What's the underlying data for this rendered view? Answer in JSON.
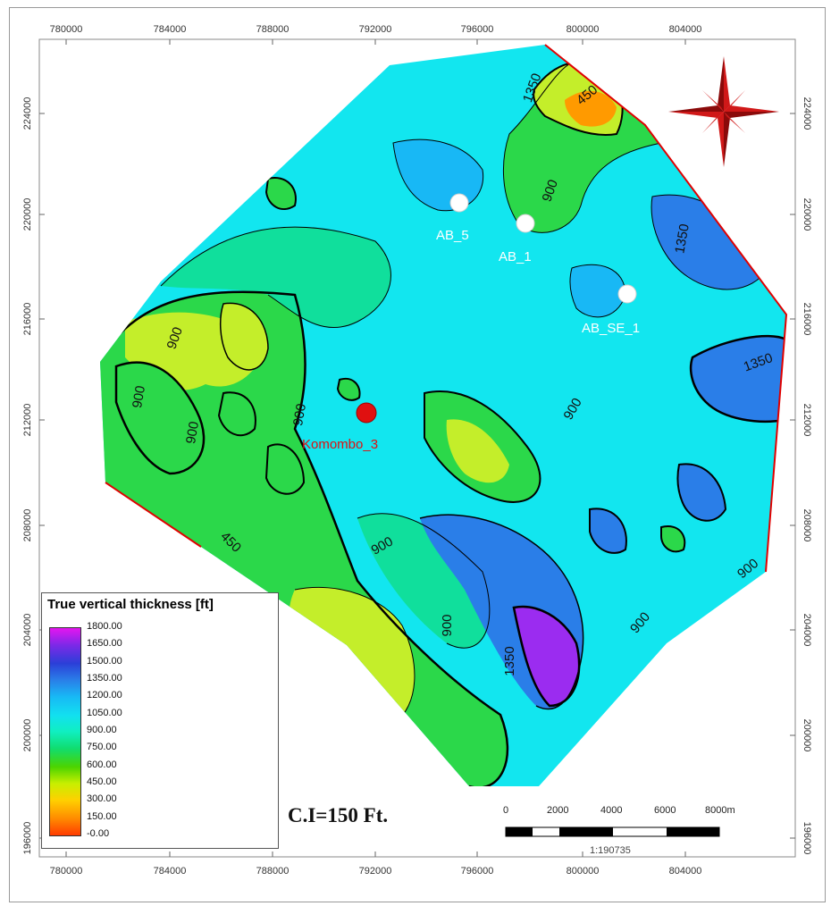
{
  "map": {
    "x_ticks": [
      "780000",
      "784000",
      "788000",
      "792000",
      "796000",
      "800000",
      "804000"
    ],
    "y_ticks": [
      "224000",
      "220000",
      "216000",
      "212000",
      "208000",
      "204000",
      "200000",
      "196000"
    ],
    "interval_label": "C.I=150 Ft.",
    "contour_labels": [
      "450",
      "900",
      "900",
      "1350",
      "1350",
      "1350",
      "900",
      "900",
      "900",
      "900",
      "450",
      "900",
      "900",
      "1350",
      "900",
      "900"
    ],
    "wells": [
      {
        "name": "AB_5",
        "color": "#ffffff"
      },
      {
        "name": "AB_1",
        "color": "#ffffff"
      },
      {
        "name": "AB_SE_1",
        "color": "#ffffff"
      },
      {
        "name": "Komombo_3",
        "color": "#e01010"
      }
    ]
  },
  "legend": {
    "title": "True vertical thickness [ft]",
    "values": [
      "1800.00",
      "1650.00",
      "1500.00",
      "1350.00",
      "1200.00",
      "1050.00",
      "900.00",
      "750.00",
      "600.00",
      "450.00",
      "300.00",
      "150.00",
      "-0.00"
    ]
  },
  "scale_bar": {
    "labels": [
      "0",
      "2000",
      "4000",
      "6000",
      "8000m"
    ],
    "ratio": "1:190735"
  },
  "colors": {
    "cyan_fill": "#12e6ef",
    "green_fill": "#2bd84a",
    "teal_fill": "#10df9c",
    "blue_fill": "#2a7ee8",
    "purple_fill": "#9b2cf0",
    "yellow_fill": "#c4ee2a",
    "orange_fill": "#ff9a00"
  }
}
